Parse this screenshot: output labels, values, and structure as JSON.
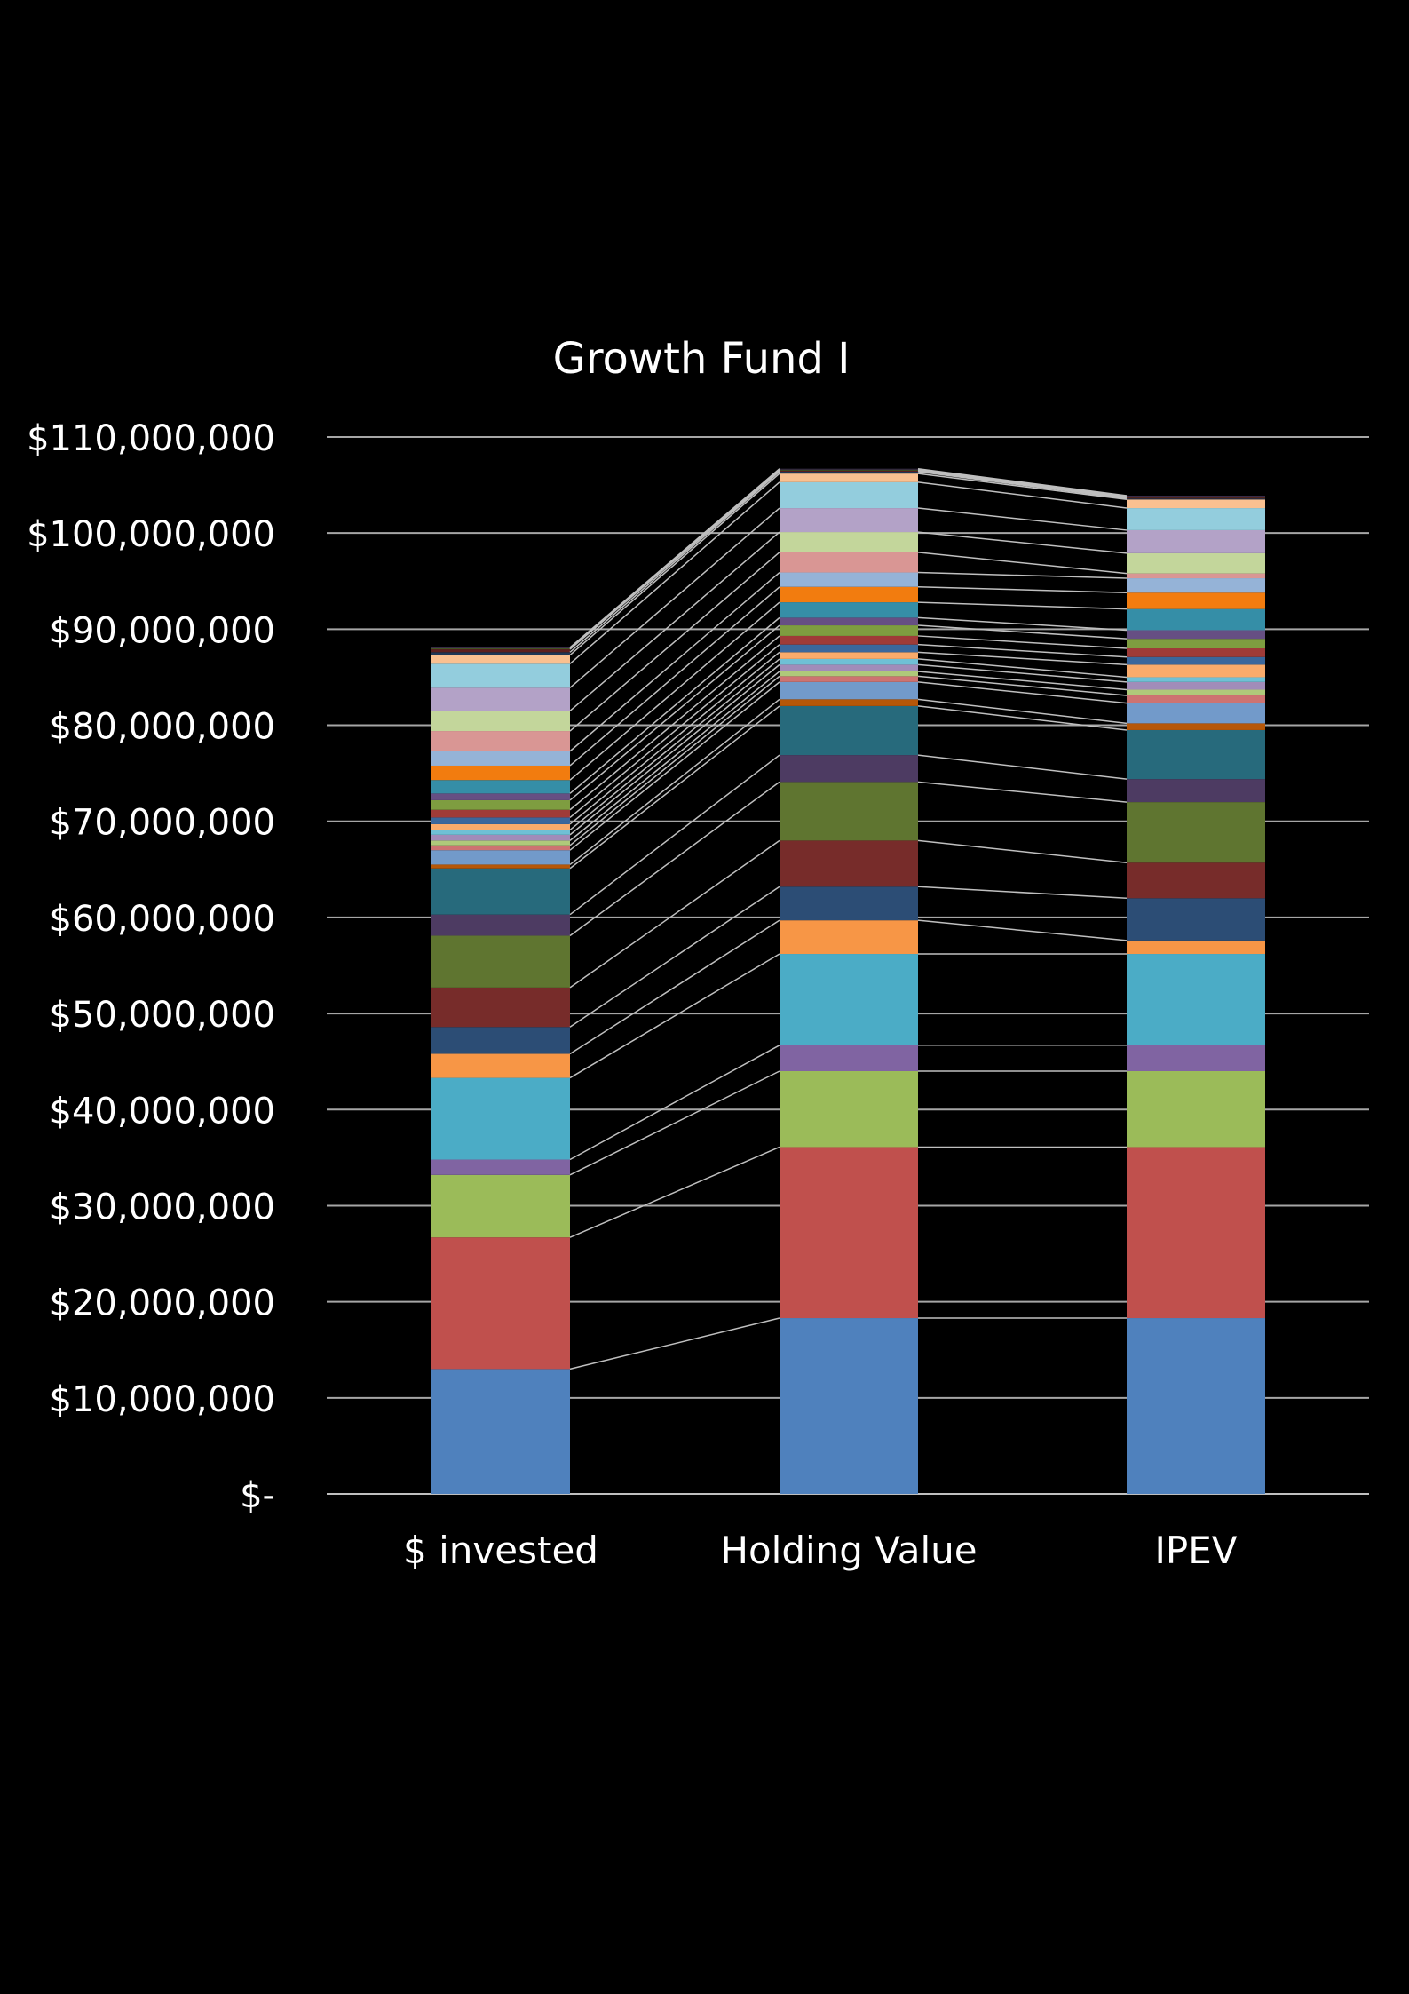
{
  "chart_data": {
    "type": "bar",
    "stacked": true,
    "title": "Growth Fund I",
    "xlabel": "",
    "ylabel": "",
    "ylim": [
      0,
      110000000
    ],
    "grid": true,
    "legend": "none",
    "series_connectors": true,
    "background": "#000000",
    "categories": [
      "$ invested",
      "Holding Value",
      "IPEV"
    ],
    "yticks": [
      {
        "value": 0,
        "label": "$-"
      },
      {
        "value": 10000000,
        "label": "$10,000,000"
      },
      {
        "value": 20000000,
        "label": "$20,000,000"
      },
      {
        "value": 30000000,
        "label": "$30,000,000"
      },
      {
        "value": 40000000,
        "label": "$40,000,000"
      },
      {
        "value": 50000000,
        "label": "$50,000,000"
      },
      {
        "value": 60000000,
        "label": "$60,000,000"
      },
      {
        "value": 70000000,
        "label": "$70,000,000"
      },
      {
        "value": 80000000,
        "label": "$80,000,000"
      },
      {
        "value": 90000000,
        "label": "$90,000,000"
      },
      {
        "value": 100000000,
        "label": "$100,000,000"
      },
      {
        "value": 110000000,
        "label": "$110,000,000"
      }
    ],
    "series": [
      {
        "color": "#4f81bd",
        "values": [
          13000000,
          18300000,
          18300000
        ]
      },
      {
        "color": "#c0504d",
        "values": [
          13700000,
          17800000,
          17800000
        ]
      },
      {
        "color": "#9bbb59",
        "values": [
          6500000,
          7900000,
          7900000
        ]
      },
      {
        "color": "#8064a2",
        "values": [
          1600000,
          2700000,
          2700000
        ]
      },
      {
        "color": "#4bacc6",
        "values": [
          8500000,
          9500000,
          9500000
        ]
      },
      {
        "color": "#f79646",
        "values": [
          2500000,
          3500000,
          1400000
        ]
      },
      {
        "color": "#2c4d75",
        "values": [
          2800000,
          3500000,
          4400000
        ]
      },
      {
        "color": "#772c2a",
        "values": [
          4100000,
          4800000,
          3700000
        ]
      },
      {
        "color": "#5f7530",
        "values": [
          5400000,
          6100000,
          6300000
        ]
      },
      {
        "color": "#4d3b62",
        "values": [
          2200000,
          2800000,
          2400000
        ]
      },
      {
        "color": "#276a7c",
        "values": [
          4800000,
          5100000,
          5100000
        ]
      },
      {
        "color": "#b65708",
        "values": [
          400000,
          700000,
          700000
        ]
      },
      {
        "color": "#729aca",
        "values": [
          1500000,
          1800000,
          2100000
        ]
      },
      {
        "color": "#cd7371",
        "values": [
          500000,
          600000,
          800000
        ]
      },
      {
        "color": "#afc97a",
        "values": [
          500000,
          500000,
          600000
        ]
      },
      {
        "color": "#a18cb9",
        "values": [
          600000,
          700000,
          800000
        ]
      },
      {
        "color": "#6fc0d5",
        "values": [
          500000,
          600000,
          500000
        ]
      },
      {
        "color": "#f9ab6b",
        "values": [
          600000,
          700000,
          1300000
        ]
      },
      {
        "color": "#3a679c",
        "values": [
          700000,
          800000,
          800000
        ]
      },
      {
        "color": "#9f3b38",
        "values": [
          800000,
          900000,
          900000
        ]
      },
      {
        "color": "#7e9d40",
        "values": [
          1000000,
          1100000,
          1000000
        ]
      },
      {
        "color": "#664f83",
        "values": [
          700000,
          800000,
          900000
        ]
      },
      {
        "color": "#358ea7",
        "values": [
          1400000,
          1600000,
          2200000
        ]
      },
      {
        "color": "#f27c0f",
        "values": [
          1500000,
          1600000,
          1700000
        ]
      },
      {
        "color": "#95b3d7",
        "values": [
          1500000,
          1500000,
          1500000
        ]
      },
      {
        "color": "#d99694",
        "values": [
          2100000,
          2100000,
          500000
        ]
      },
      {
        "color": "#c3d69b",
        "values": [
          2100000,
          2100000,
          2100000
        ]
      },
      {
        "color": "#b3a2c7",
        "values": [
          2400000,
          2500000,
          2400000
        ]
      },
      {
        "color": "#93cddd",
        "values": [
          2500000,
          2700000,
          2300000
        ]
      },
      {
        "color": "#fac090",
        "values": [
          900000,
          900000,
          900000
        ]
      },
      {
        "color": "#1f3655",
        "values": [
          300000,
          200000,
          100000
        ]
      },
      {
        "color": "#5e1f1e",
        "values": [
          300000,
          100000,
          100000
        ]
      },
      {
        "color": "#425523",
        "values": [
          100000,
          100000,
          100000
        ]
      },
      {
        "color": "#382b48",
        "values": [
          100000,
          100000,
          100000
        ]
      }
    ]
  }
}
